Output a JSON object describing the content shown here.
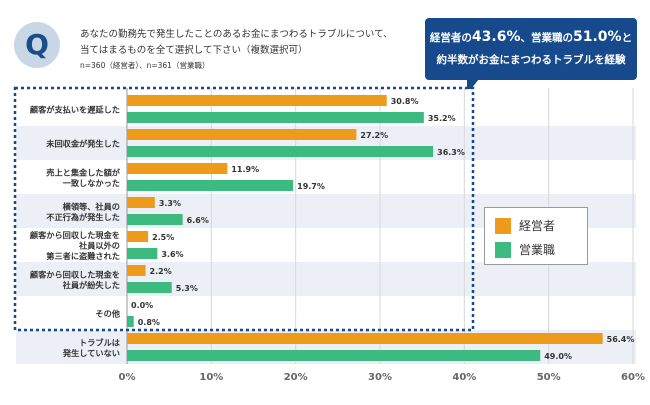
{
  "header": {
    "q_label": "Q",
    "title_line1": "あなたの勤務先で発生したことのあるお金にまつわるトラブルについて、",
    "title_line2": "当てはまるものを全て選択して下さい（複数選択可）",
    "sample": "n=360（経営者）、n=361（営業職）"
  },
  "callout": {
    "p1": "経営者の",
    "v1": "43.6%",
    "p2": "、営業職の",
    "v2": "51.0%",
    "p3": "と",
    "line2": "約半数がお金にまつわるトラブルを経験"
  },
  "chart_data": {
    "type": "bar",
    "orientation": "horizontal",
    "categories": [
      "顧客が支払いを遅延した",
      "未回収金が発生した",
      "売上と集金した額が\n一致しなかった",
      "横領等、社員の\n不正行為が発生した",
      "顧客から回収した現金を\n社員以外の\n第三者に盗難された",
      "顧客から回収した現金を\n社員が紛失した",
      "その他",
      "トラブルは\n発生していない"
    ],
    "series": [
      {
        "name": "経営者",
        "color": "#ee9a1a",
        "values": [
          30.8,
          27.2,
          11.9,
          3.3,
          2.5,
          2.2,
          0.0,
          56.4
        ]
      },
      {
        "name": "営業職",
        "color": "#3cba80",
        "values": [
          35.2,
          36.3,
          19.7,
          6.6,
          3.6,
          5.3,
          0.8,
          49.0
        ]
      }
    ],
    "xlim": [
      0,
      60
    ],
    "xticks": [
      "0%",
      "10%",
      "20%",
      "30%",
      "40%",
      "50%",
      "60%"
    ],
    "grid": true,
    "legend_position": "right",
    "highlight": "first 7 categories enclosed by dotted box"
  }
}
